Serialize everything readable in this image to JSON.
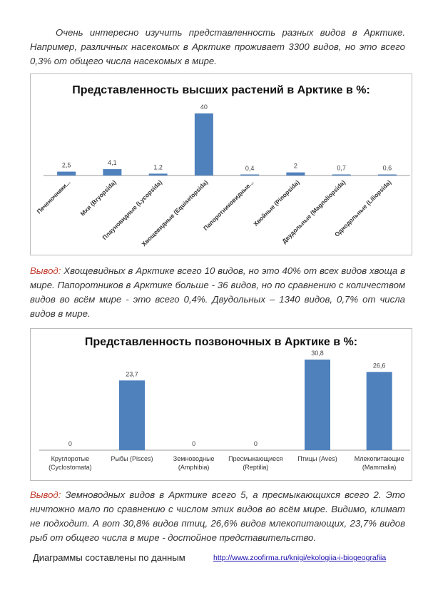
{
  "intro": "Очень интересно изучить представленность разных видов в Арктике. Например, различных насекомых в Арктике проживает 3300 видов, но это всего 0,3% от общего числа насекомых в мире.",
  "conclusion1": {
    "label": "Вывод:",
    "text": " Хвощевидных в Арктике всего 10 видов, но это 40% от всех видов хвоща в мире. Папоротников в Арктике больше - 36 видов, но по сравнению с количеством видов во всём мире - это всего 0,4%. Двудольных – 1340 видов, 0,7% от числа видов в мире."
  },
  "conclusion2": {
    "label": "Вывод:",
    "text": " Земноводных видов в Арктике всего 5, а пресмыкающихся всего 2. Это ничтожно мало по сравнению с числом этих видов во всём мире. Видимо, климат не подходит. А вот 30,8% видов птиц, 26,6% видов млекопитающих, 23,7% видов рыб от общего числа в мире - достойное представительство."
  },
  "footer": {
    "text": "Диаграммы составлены по данным",
    "link": "http://www.zoofirma.ru/knigi/ekologiia-i-biogeografiia"
  },
  "colors": {
    "bar": "#4f81bd",
    "label_red": "#c0392b"
  },
  "chart_data": [
    {
      "type": "bar",
      "title": "Представленность высших растений в Арктике в %:",
      "categories": [
        "Печеночники...",
        "Мхи (Bryopsida)",
        "Плауновидные (Lycopsida)",
        "Хвощевидные (Equisetopsida)",
        "Папоротниковидные...",
        "Хвойные (Pinopsida)",
        "Двудольные (Magnoliopsida)",
        "Однодольные (Liliopsida)"
      ],
      "values": [
        2.5,
        4.1,
        1.2,
        40,
        0.4,
        2,
        0.7,
        0.6
      ],
      "labels": [
        "2,5",
        "4,1",
        "1,2",
        "40",
        "0,4",
        "2",
        "0,7",
        "0,6"
      ],
      "ylim": [
        0,
        40
      ],
      "grid": false,
      "legend": "none"
    },
    {
      "type": "bar",
      "title": "Представленность позвоночных в Арктике в %:",
      "categories": [
        [
          "Круглоротые",
          "(Cyclostomata)"
        ],
        [
          "Рыбы (Pisces)",
          ""
        ],
        [
          "Земноводные",
          "(Amphibia)"
        ],
        [
          "Пресмыкающиеся",
          "(Reptilia)"
        ],
        [
          "Птицы (Aves)",
          ""
        ],
        [
          "Млекопитающие",
          "(Mammalia)"
        ]
      ],
      "values": [
        0,
        23.7,
        0,
        0,
        30.8,
        26.6
      ],
      "labels": [
        "0",
        "23,7",
        "0",
        "0",
        "30,8",
        "26,6"
      ],
      "ylim": [
        0,
        30.8
      ],
      "grid": false,
      "legend": "none"
    }
  ]
}
